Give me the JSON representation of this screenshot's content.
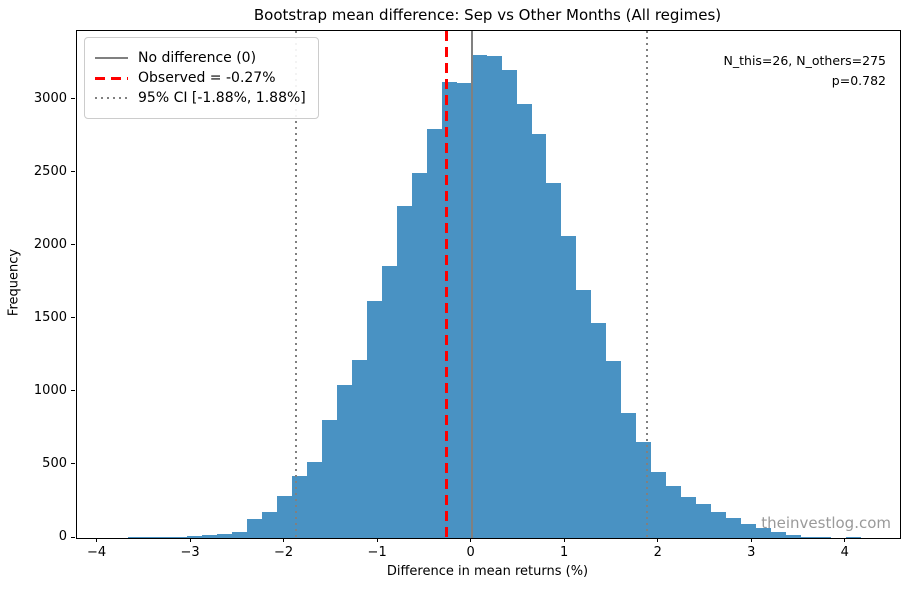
{
  "chart_data": {
    "type": "bar",
    "subtype": "histogram",
    "title": "Bootstrap mean difference: Sep vs Other Months (All regimes)",
    "xlabel": "Difference in mean returns (%)",
    "ylabel": "Frequency",
    "bin_start": -3.84,
    "bin_width": 0.16,
    "counts": [
      3,
      4,
      5,
      7,
      10,
      15,
      20,
      28,
      38,
      128,
      179,
      288,
      426,
      522,
      810,
      1050,
      1220,
      1620,
      1860,
      2270,
      2495,
      2800,
      3120,
      3115,
      3305,
      3300,
      3205,
      2970,
      2765,
      2430,
      2070,
      1700,
      1470,
      1210,
      855,
      660,
      455,
      355,
      280,
      235,
      180,
      140,
      98,
      70,
      41,
      21,
      4,
      7,
      0,
      7
    ],
    "xlim": [
      -4.22,
      4.58
    ],
    "ylim": [
      0,
      3470
    ],
    "grid": false,
    "bar_color": "#4992c3",
    "xticks": [
      {
        "value": -4,
        "label": "−4"
      },
      {
        "value": -3,
        "label": "−3"
      },
      {
        "value": -2,
        "label": "−2"
      },
      {
        "value": -1,
        "label": "−1"
      },
      {
        "value": 0,
        "label": "0"
      },
      {
        "value": 1,
        "label": "1"
      },
      {
        "value": 2,
        "label": "2"
      },
      {
        "value": 3,
        "label": "3"
      },
      {
        "value": 4,
        "label": "4"
      }
    ],
    "yticks": [
      {
        "value": 0,
        "label": "0"
      },
      {
        "value": 500,
        "label": "500"
      },
      {
        "value": 1000,
        "label": "1000"
      },
      {
        "value": 1500,
        "label": "1500"
      },
      {
        "value": 2000,
        "label": "2000"
      },
      {
        "value": 2500,
        "label": "2500"
      },
      {
        "value": 3000,
        "label": "3000"
      }
    ],
    "legend_position": "upper-left",
    "legend": [
      {
        "label": "No difference (0)",
        "style": "solid",
        "color": "#808080"
      },
      {
        "label": "Observed = -0.27%",
        "style": "dashed",
        "color": "#ff0000"
      },
      {
        "label": "95% CI [-1.88%, 1.88%]",
        "style": "dotted",
        "color": "#808080"
      }
    ],
    "vlines": [
      {
        "x": 0,
        "style": "solid",
        "color": "#808080",
        "width": 2
      },
      {
        "x": -0.27,
        "style": "dashed",
        "color": "#ff0000",
        "width": 3
      },
      {
        "x": -1.88,
        "style": "dotted",
        "color": "#808080",
        "width": 2
      },
      {
        "x": 1.88,
        "style": "dotted",
        "color": "#808080",
        "width": 2
      }
    ],
    "annotation": {
      "line1": "N_this=26, N_others=275",
      "line2": "p=0.782"
    },
    "watermark": "theinvestlog.com"
  }
}
